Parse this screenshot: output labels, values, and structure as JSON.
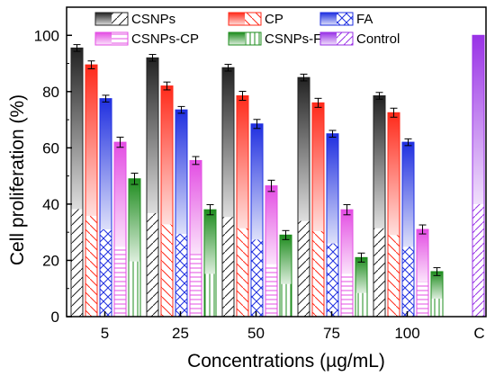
{
  "chart_data": {
    "type": "bar",
    "title": "",
    "xlabel": "Concentrations (µg/mL)",
    "ylabel": "Cell proliferation (%)",
    "ylim": [
      0,
      110
    ],
    "yticks": [
      0,
      20,
      40,
      60,
      80,
      100
    ],
    "categories": [
      "5",
      "25",
      "50",
      "75",
      "100"
    ],
    "series": [
      {
        "name": "CSNPs",
        "values": [
          95.5,
          92,
          88.5,
          85,
          78.5
        ],
        "errors": [
          1.2,
          1.2,
          1.2,
          1.2,
          1.2
        ],
        "color": "#222222"
      },
      {
        "name": "CP",
        "values": [
          89.5,
          82,
          78.5,
          76,
          72.5
        ],
        "errors": [
          1.4,
          1.4,
          1.6,
          1.6,
          1.6
        ],
        "color": "#ff2a1a"
      },
      {
        "name": "FA",
        "values": [
          77.5,
          73.5,
          68.5,
          65,
          62
        ],
        "errors": [
          1.2,
          1.2,
          1.6,
          1.2,
          1.2
        ],
        "color": "#1f2fe0"
      },
      {
        "name": "CSNPs-CP",
        "values": [
          62,
          55.5,
          46.5,
          38,
          31
        ],
        "errors": [
          1.8,
          1.4,
          2.0,
          1.8,
          1.6
        ],
        "color": "#e34de3"
      },
      {
        "name": "CSNPs-FA",
        "values": [
          49,
          38,
          29,
          21,
          16
        ],
        "errors": [
          2.0,
          1.8,
          1.6,
          1.6,
          1.4
        ],
        "color": "#1e8c1e"
      }
    ],
    "control": {
      "name": "Control",
      "category": "C",
      "value": 100,
      "color": "#9932e6"
    },
    "legend": {
      "placement": "top",
      "columns": 3
    }
  }
}
